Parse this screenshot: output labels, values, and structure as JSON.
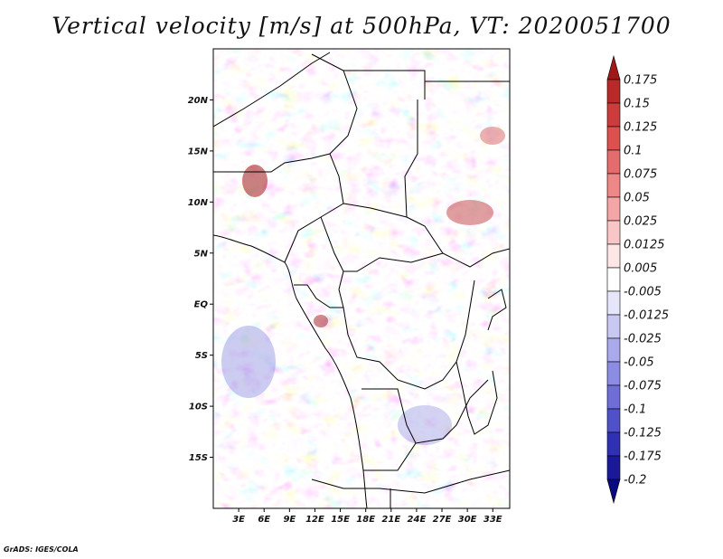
{
  "title": "Vertical velocity [m/s] at 500hPa, VT: 2020051700",
  "credit": "GrADS: IGES/COLA",
  "map": {
    "lon_range": [
      0,
      35
    ],
    "lat_range": [
      -20,
      25
    ],
    "lat_ticks": [
      {
        "value": 20,
        "label": "20N"
      },
      {
        "value": 15,
        "label": "15N"
      },
      {
        "value": 10,
        "label": "10N"
      },
      {
        "value": 5,
        "label": "5N"
      },
      {
        "value": 0,
        "label": "EQ"
      },
      {
        "value": -5,
        "label": "5S"
      },
      {
        "value": -10,
        "label": "10S"
      },
      {
        "value": -15,
        "label": "15S"
      }
    ],
    "lon_ticks": [
      {
        "value": 3,
        "label": "3E"
      },
      {
        "value": 6,
        "label": "6E"
      },
      {
        "value": 9,
        "label": "9E"
      },
      {
        "value": 12,
        "label": "12E"
      },
      {
        "value": 15,
        "label": "15E"
      },
      {
        "value": 18,
        "label": "18E"
      },
      {
        "value": 21,
        "label": "21E"
      },
      {
        "value": 24,
        "label": "24E"
      },
      {
        "value": 27,
        "label": "27E"
      },
      {
        "value": 30,
        "label": "30E"
      },
      {
        "value": 33,
        "label": "33E"
      }
    ]
  },
  "colorbar": {
    "levels": [
      "0.175",
      "0.15",
      "0.125",
      "0.1",
      "0.075",
      "0.05",
      "0.025",
      "0.0125",
      "0.005",
      "-0.005",
      "-0.0125",
      "-0.025",
      "-0.05",
      "-0.075",
      "-0.1",
      "-0.125",
      "-0.175",
      "-0.2"
    ],
    "colors": [
      "#a01818",
      "#b82a2a",
      "#cc3c3c",
      "#dc5050",
      "#e46c6c",
      "#ec8888",
      "#f2a6a6",
      "#f8c6c6",
      "#fce6e6",
      "#ffffff",
      "#e6e6fa",
      "#c8c8f2",
      "#aaaaea",
      "#8c8ce2",
      "#6e6ed6",
      "#5050c8",
      "#3030b4",
      "#1a1a98",
      "#0a0a80"
    ]
  }
}
